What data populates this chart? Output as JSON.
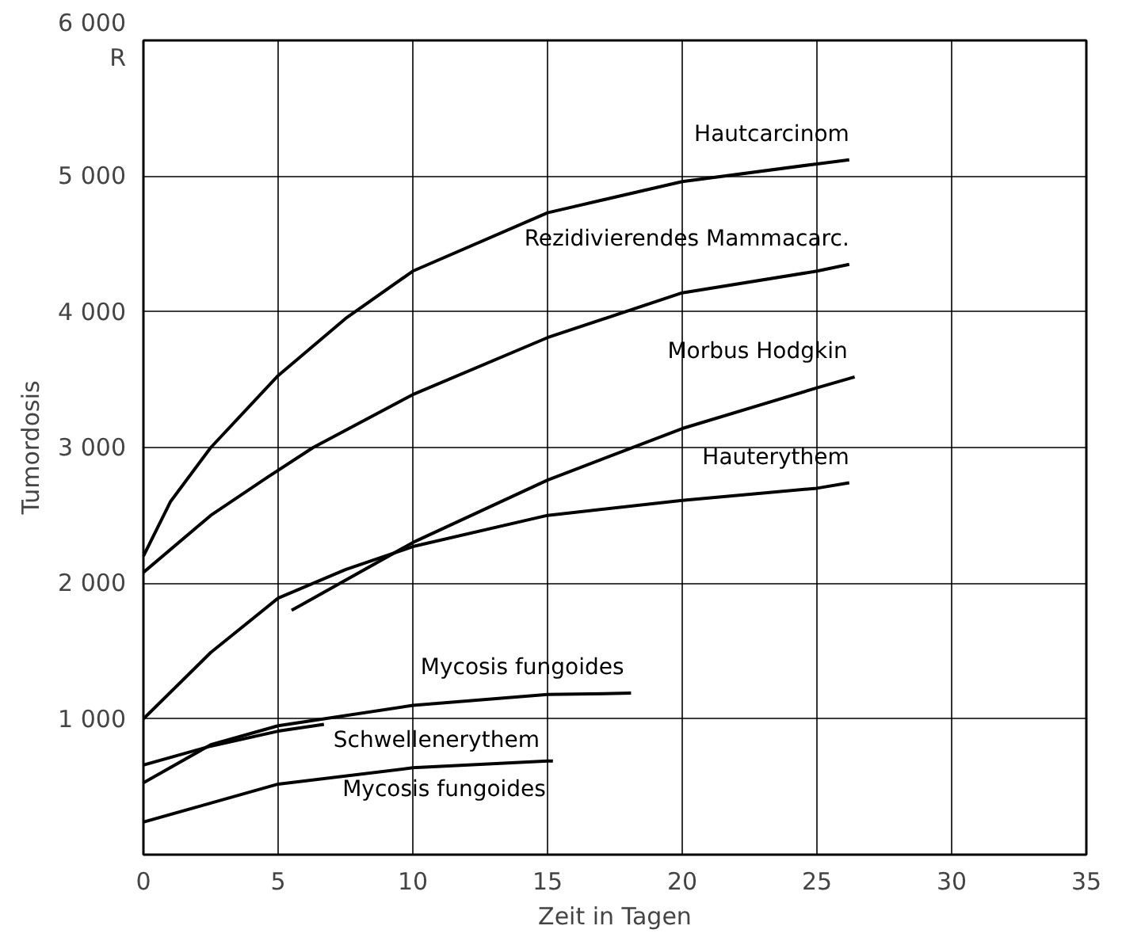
{
  "chart_data": {
    "type": "line",
    "xlabel": "Zeit in Tagen",
    "ylabel": "Tumordosis",
    "xlim": [
      0,
      35
    ],
    "ylim": [
      0,
      6000
    ],
    "xticks": [
      0,
      5,
      10,
      15,
      20,
      25,
      30,
      35
    ],
    "yticks": [
      {
        "value": 1000,
        "label": "1 000"
      },
      {
        "value": 2000,
        "label": "2 000"
      },
      {
        "value": 3000,
        "label": "3 000"
      },
      {
        "value": 4000,
        "label": "4 000"
      },
      {
        "value": 5000,
        "label": "5 000"
      },
      {
        "value": 6000,
        "label": "6 000"
      }
    ],
    "grid": true,
    "line_style": "solid",
    "marker": "none",
    "series": [
      {
        "name": "Hautcarcinom",
        "color": "#000000",
        "x": [
          0,
          1,
          2.5,
          5,
          7.5,
          10,
          15,
          20,
          25,
          26.2
        ],
        "values": [
          2200,
          2600,
          3000,
          3530,
          3950,
          4300,
          4730,
          4960,
          5090,
          5120
        ]
      },
      {
        "name": "Rezidivierendes Mammacarc.",
        "color": "#000000",
        "x": [
          0,
          2.5,
          4.6,
          6.3,
          10,
          15,
          20,
          25,
          26.2
        ],
        "values": [
          2080,
          2500,
          2780,
          3000,
          3390,
          3810,
          4140,
          4300,
          4350
        ]
      },
      {
        "name": "Morbus  Hodgkin",
        "color": "#000000",
        "x": [
          5.5,
          10,
          15,
          20,
          25,
          26.4
        ],
        "values": [
          1800,
          2300,
          2760,
          3140,
          3440,
          3520
        ]
      },
      {
        "name": "Hauterythem",
        "color": "#000000",
        "x": [
          0,
          2.5,
          5,
          7.5,
          10,
          15,
          20,
          25,
          26.2
        ],
        "values": [
          1000,
          1490,
          1890,
          2100,
          2270,
          2500,
          2610,
          2700,
          2740
        ]
      },
      {
        "name": "Mycosis  fungoides",
        "color": "#000000",
        "x": [
          0,
          2.5,
          5,
          10,
          15,
          18.1
        ],
        "values": [
          530,
          810,
          950,
          1100,
          1180,
          1190
        ]
      },
      {
        "name": "Schwellenerythem",
        "color": "#000000",
        "x": [
          0,
          2.5,
          5,
          6.7
        ],
        "values": [
          660,
          800,
          910,
          960
        ]
      },
      {
        "name": "Mycosis  fungoides",
        "color": "#000000",
        "x": [
          0,
          2.5,
          5,
          10,
          15,
          15.2
        ],
        "values": [
          240,
          380,
          520,
          640,
          690,
          690
        ]
      }
    ],
    "annotations": [
      "R"
    ]
  }
}
